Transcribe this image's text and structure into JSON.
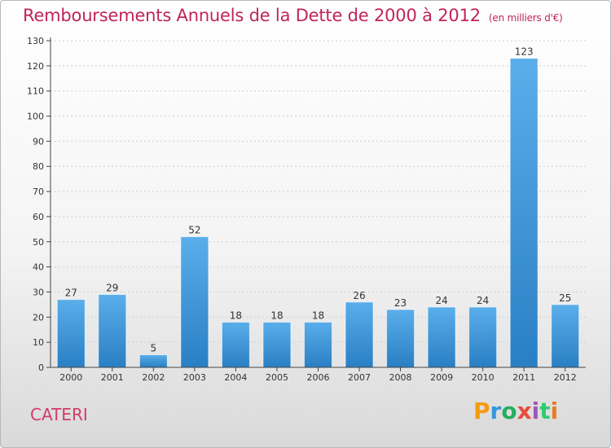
{
  "title": "Remboursements Annuels de la Dette de 2000 à 2012",
  "subtitle": "(en milliers d'€)",
  "place": "CATERI",
  "logo": {
    "letters": [
      "P",
      "r",
      "o",
      "x",
      "i",
      "t",
      "i"
    ],
    "colors": [
      "#f39c12",
      "#3498db",
      "#27ae60",
      "#e74c3c",
      "#9b59b6",
      "#2ecc71",
      "#e67e22"
    ]
  },
  "colors": {
    "bar_top": "#5aaeea",
    "bar_bottom": "#2a7fc4",
    "axis": "#444444",
    "grid": "#d0d0d0"
  },
  "chart_data": {
    "type": "bar",
    "categories": [
      "2000",
      "2001",
      "2002",
      "2003",
      "2004",
      "2005",
      "2006",
      "2007",
      "2008",
      "2009",
      "2010",
      "2011",
      "2012"
    ],
    "values": [
      27,
      29,
      5,
      52,
      18,
      18,
      18,
      26,
      23,
      24,
      24,
      123,
      25
    ],
    "title": "Remboursements Annuels de la Dette de 2000 à 2012",
    "xlabel": "",
    "ylabel": "",
    "ylim": [
      0,
      130
    ],
    "yticks": [
      0,
      10,
      20,
      30,
      40,
      50,
      60,
      70,
      80,
      90,
      100,
      110,
      120,
      130
    ],
    "grid": true
  }
}
